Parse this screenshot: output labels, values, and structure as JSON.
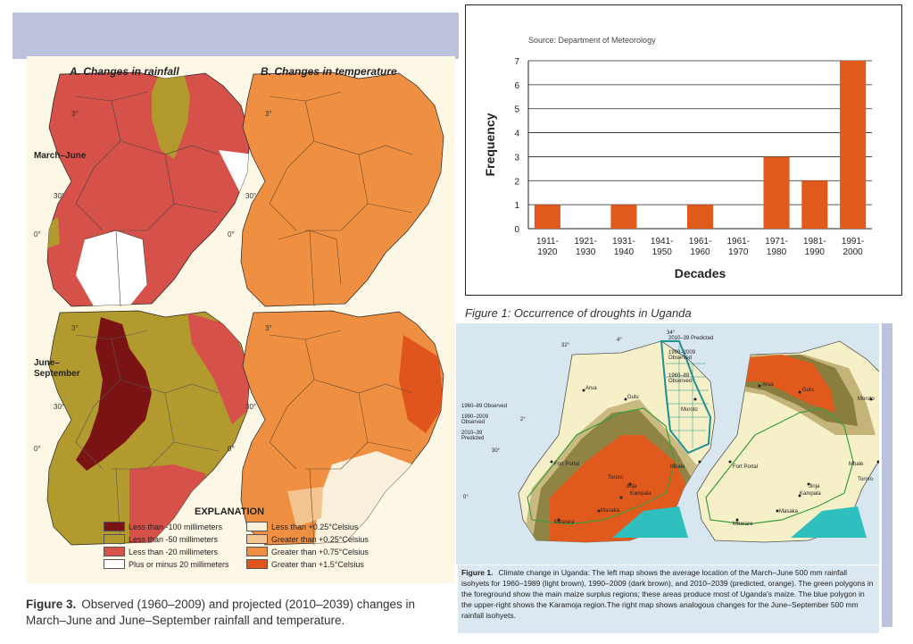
{
  "figure3": {
    "panel_a_title": "A. Changes in rainfall",
    "panel_b_title": "B. Changes in temperature",
    "season_1": "March–June",
    "season_2a": "June–",
    "season_2b": "September",
    "deg_3": "3°",
    "deg_30": "30°",
    "deg_0": "0°",
    "explanation_title": "EXPLANATION",
    "legend_rain": [
      {
        "label": "Less than -100 millimeters",
        "color": "#7a1414"
      },
      {
        "label": "Less than -50 millimeters",
        "color": "#b29a2f"
      },
      {
        "label": "Less than -20 millimeters",
        "color": "#d5514a"
      },
      {
        "label": "Plus or minus 20 millimeters",
        "color": "#ffffff"
      }
    ],
    "legend_temp": [
      {
        "label": "Less than +0.25°Celsius",
        "color": "#fbf0dc"
      },
      {
        "label": "Greater than +0.25°Celsius",
        "color": "#f3c48f"
      },
      {
        "label": "Greater than +0.75°Celsius",
        "color": "#ef8f42"
      },
      {
        "label": "Greater than +1.5°Celsius",
        "color": "#e0551e"
      }
    ],
    "caption_label": "Figure 3.",
    "caption_text": "Observed (1960–2009) and projected (2010–2039) changes in March–June and June–September rainfall and temperature."
  },
  "chart_data": {
    "type": "bar",
    "source": "Source: Department of Meteorology",
    "categories": [
      [
        "1911-",
        "1920"
      ],
      [
        "1921-",
        "1930"
      ],
      [
        "1931-",
        "1940"
      ],
      [
        "1941-",
        "1950"
      ],
      [
        "1961-",
        "1960"
      ],
      [
        "1961-",
        "1970"
      ],
      [
        "1971-",
        "1980"
      ],
      [
        "1981-",
        "1990"
      ],
      [
        "1991-",
        "2000"
      ]
    ],
    "values": [
      1,
      0,
      1,
      0,
      1,
      0,
      3,
      2,
      7
    ],
    "ylabel": "Frequency",
    "xlabel": "Decades",
    "ylim": [
      0,
      7
    ],
    "yticks": [
      0,
      1,
      2,
      3,
      4,
      5,
      6,
      7
    ],
    "bar_color": "#e05a1e",
    "grid": true,
    "title": "Figure 1: Occurrence of droughts in Uganda"
  },
  "figure1": {
    "left_map": {
      "deg_top": "34°",
      "deg_4": "4°",
      "deg_32": "32°",
      "deg_2": "2°",
      "deg_30": "30°",
      "deg_0": "0°",
      "label_1960": "1960–89 Observed",
      "label_1990": "1990–2009 Observed",
      "label_2010": "2010–39 Predicted",
      "towns": [
        "Arua",
        "Gulu",
        "Moroto",
        "Fort Portal",
        "Mbale",
        "Tororo",
        "Jinja",
        "Kampala",
        "Masaka",
        "Mbarara"
      ]
    },
    "right_map": {
      "label_2010": "2010–39 Predicted",
      "label_1990": "1990–2009 Observed",
      "label_1960": "1960–89 Observed",
      "towns": [
        "Arua",
        "Gulu",
        "Moroto",
        "Fort Portal",
        "Mbale",
        "Jinja",
        "Kampala",
        "Masaka",
        "Mbarara",
        "Tororo"
      ]
    },
    "caption_label": "Figure 1.",
    "caption_text": "Climate change in Uganda: The left map shows the average location of the March–June 500 mm rainfall isohyets for 1960–1989 (light brown), 1990–2009 (dark brown), and 2010–2039 (predicted, orange). The green polygons in the foreground show the main maize surplus regions; these areas produce most of Uganda's maize. The blue polygon in the upper-right shows the Karamoja region.The right map shows analogous changes for the June–September 500 mm rainfall isohyets."
  }
}
